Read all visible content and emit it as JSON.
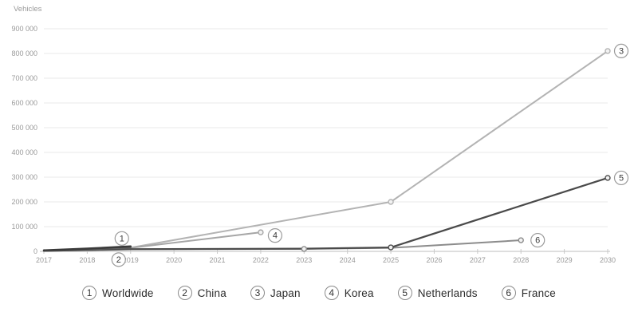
{
  "chart_data": {
    "type": "line",
    "title": "Vehicles",
    "xlabel": "",
    "ylabel": "Vehicles",
    "x_ticks": [
      2017,
      2018,
      2019,
      2020,
      2021,
      2022,
      2023,
      2024,
      2025,
      2026,
      2027,
      2028,
      2029,
      2030
    ],
    "y_ticks": {
      "values": [
        0,
        100000,
        200000,
        300000,
        400000,
        500000,
        600000,
        700000,
        800000,
        900000
      ],
      "labels": [
        "0",
        "100 000",
        "200 000",
        "300 000",
        "400 000",
        "500 000",
        "600 000",
        "700 000",
        "800 000",
        "900 000"
      ]
    },
    "ylim": [
      0,
      900000
    ],
    "grid": "horizontal",
    "legend_position": "bottom",
    "series": [
      {
        "number": "1",
        "name": "Worldwide",
        "color": "#3a3a3a",
        "line_width": 2.6,
        "points": [
          {
            "x": 2017,
            "y": 4000
          },
          {
            "x": 2018,
            "y": 11000
          },
          {
            "x": 2019,
            "y": 20000
          }
        ],
        "markers": [],
        "badge_offset": [
          -11,
          -10
        ]
      },
      {
        "number": "2",
        "name": "China",
        "color": "#646464",
        "line_width": 2.0,
        "points": [
          {
            "x": 2017,
            "y": 2500
          },
          {
            "x": 2019,
            "y": 15000
          }
        ],
        "markers": [],
        "badge_offset": [
          -15,
          15
        ]
      },
      {
        "number": "3",
        "name": "Japan",
        "color": "#b3b3b3",
        "line_width": 2.0,
        "points": [
          {
            "x": 2019,
            "y": 15000
          },
          {
            "x": 2025,
            "y": 200000
          },
          {
            "x": 2030,
            "y": 810000
          }
        ],
        "markers": [
          2025,
          2030
        ],
        "badge_offset": [
          17,
          0
        ]
      },
      {
        "number": "4",
        "name": "Korea",
        "color": "#a6a6a6",
        "line_width": 2.0,
        "points": [
          {
            "x": 2019,
            "y": 14000
          },
          {
            "x": 2022,
            "y": 77000
          }
        ],
        "markers": [
          2022
        ],
        "badge_offset": [
          18,
          4
        ]
      },
      {
        "number": "5",
        "name": "Netherlands",
        "color": "#4a4a4a",
        "line_width": 2.2,
        "points": [
          {
            "x": 2017,
            "y": 2000
          },
          {
            "x": 2019,
            "y": 9000
          },
          {
            "x": 2023,
            "y": 11000
          },
          {
            "x": 2025,
            "y": 16000
          },
          {
            "x": 2030,
            "y": 297000
          }
        ],
        "markers": [
          2025,
          2030
        ],
        "badge_offset": [
          17,
          0
        ]
      },
      {
        "number": "6",
        "name": "France",
        "color": "#8c8c8c",
        "line_width": 2.0,
        "points": [
          {
            "x": 2017,
            "y": 1500
          },
          {
            "x": 2019,
            "y": 8000
          },
          {
            "x": 2023,
            "y": 10000
          },
          {
            "x": 2025,
            "y": 14000
          },
          {
            "x": 2028,
            "y": 45000
          }
        ],
        "markers": [
          2023,
          2028
        ],
        "badge_offset": [
          21,
          0
        ]
      }
    ],
    "legend_items": [
      {
        "number": "1",
        "label": "Worldwide"
      },
      {
        "number": "2",
        "label": "China"
      },
      {
        "number": "3",
        "label": "Japan"
      },
      {
        "number": "4",
        "label": "Korea"
      },
      {
        "number": "5",
        "label": "Netherlands"
      },
      {
        "number": "6",
        "label": "France"
      }
    ]
  },
  "colors": {
    "grid_line": "#e9e9e9",
    "axis_line": "#c9c9c9",
    "tick_text": "#9a9a9a",
    "title_text": "#9a9a9a",
    "badge_border": "#9b9b9b",
    "badge_fill": "#ffffff",
    "badge_text": "#3a3a3a",
    "marker_fill": "#f2f2f2"
  }
}
